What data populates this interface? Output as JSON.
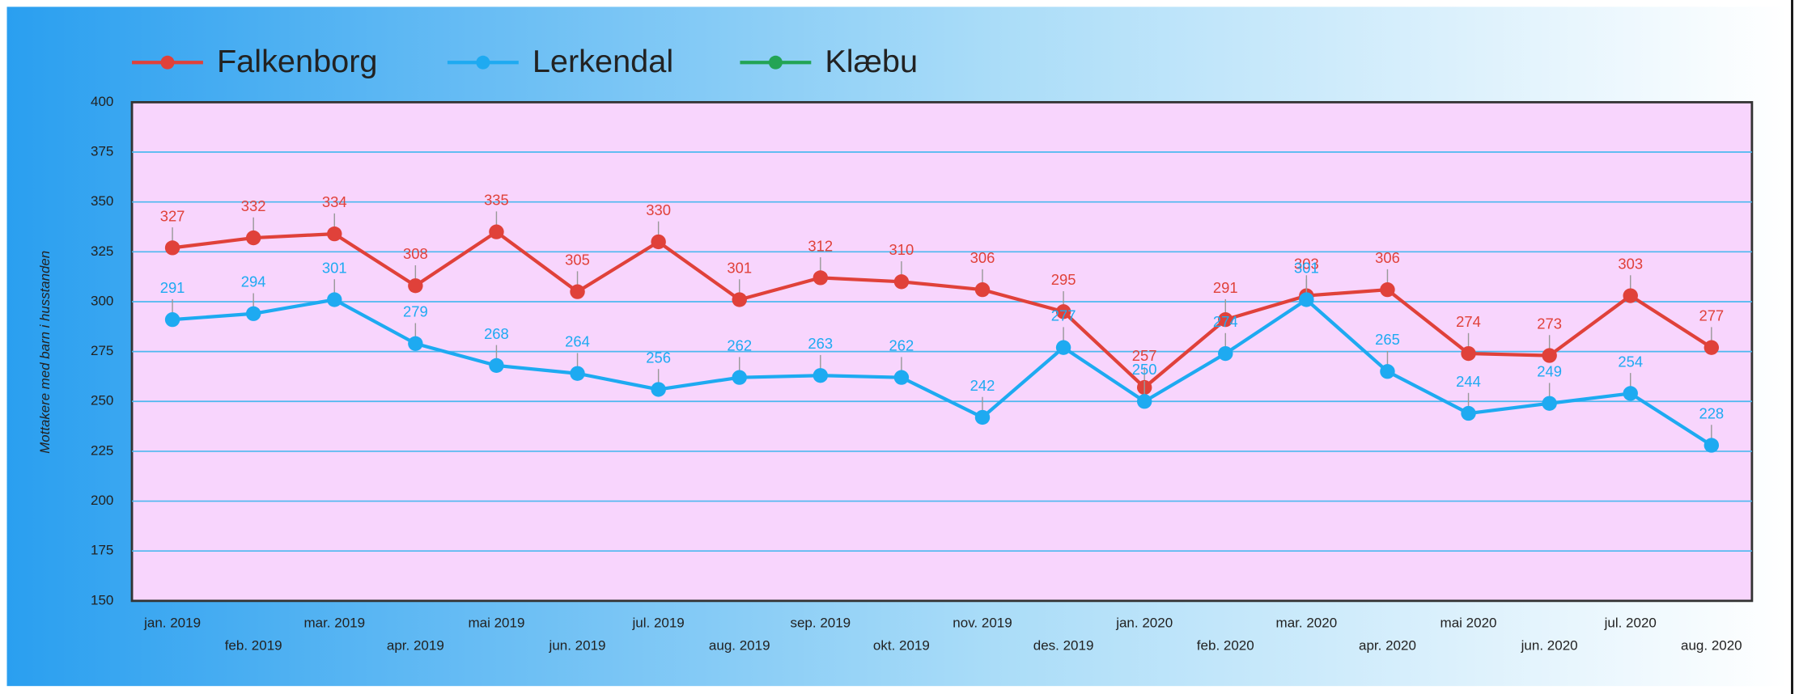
{
  "chart_data": {
    "type": "line",
    "y_label": "Mottakere med barn i husstanden",
    "categories": [
      "jan. 2019",
      "feb. 2019",
      "mar. 2019",
      "apr. 2019",
      "mai 2019",
      "jun. 2019",
      "jul. 2019",
      "aug. 2019",
      "sep. 2019",
      "okt. 2019",
      "nov. 2019",
      "des. 2019",
      "jan. 2020",
      "feb. 2020",
      "mar. 2020",
      "apr. 2020",
      "mai 2020",
      "jun. 2020",
      "jul. 2020",
      "aug. 2020"
    ],
    "series": [
      {
        "name": "Falkenborg",
        "color": "#e0413a",
        "values": [
          327,
          332,
          334,
          308,
          335,
          305,
          330,
          301,
          312,
          310,
          306,
          295,
          257,
          291,
          303,
          306,
          274,
          273,
          303,
          277
        ]
      },
      {
        "name": "Lerkendal",
        "color": "#1eaaf1",
        "values": [
          291,
          294,
          301,
          279,
          268,
          264,
          256,
          262,
          263,
          262,
          242,
          277,
          250,
          274,
          301,
          265,
          244,
          249,
          254,
          228
        ]
      },
      {
        "name": "Klæbu",
        "color": "#23a455",
        "values": [
          null,
          null,
          null,
          null,
          null,
          null,
          null,
          null,
          null,
          null,
          null,
          null,
          null,
          null,
          null,
          null,
          null,
          null,
          null,
          null
        ]
      }
    ],
    "ylim": [
      150,
      400
    ],
    "yticks": [
      150,
      175,
      200,
      225,
      250,
      275,
      300,
      325,
      350,
      375,
      400
    ],
    "grid": true
  }
}
